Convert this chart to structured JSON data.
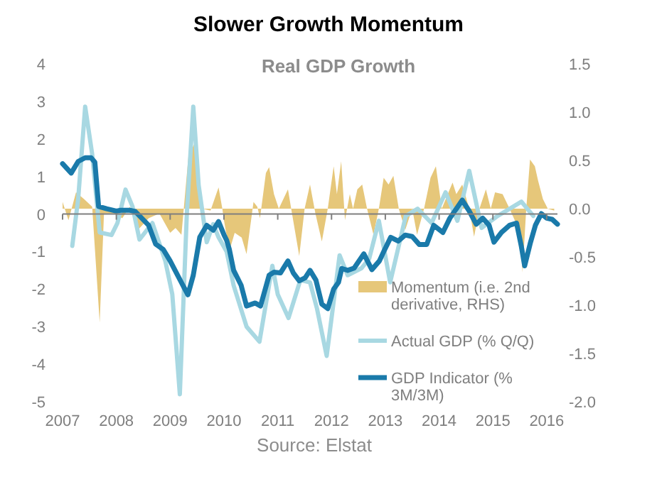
{
  "chart_data": {
    "type": "line",
    "title": "Slower Growth Momentum",
    "subtitle": "Real GDP Growth",
    "annotations": [
      "Source: Elstat"
    ],
    "xlim": [
      2007,
      2016.2
    ],
    "xticks": [
      2007,
      2008,
      2009,
      2010,
      2011,
      2012,
      2013,
      2014,
      2015,
      2016
    ],
    "ylim": [
      -5,
      4
    ],
    "yticks": [
      -5,
      -4,
      -3,
      -2,
      -1,
      0,
      1,
      2,
      3,
      4
    ],
    "y2lim": [
      -2,
      1.5
    ],
    "y2ticks": [
      {
        "value": -2,
        "label": "-2.0"
      },
      {
        "value": -1.5,
        "label": "-1.5"
      },
      {
        "value": -1,
        "label": "-1.0"
      },
      {
        "value": -0.5,
        "label": "-0.5"
      },
      {
        "value": 0,
        "label": "0.0"
      },
      {
        "value": 0.5,
        "label": "0.5"
      },
      {
        "value": 1,
        "label": "1.0"
      },
      {
        "value": 1.5,
        "label": "1.5"
      }
    ],
    "legend": "bottom right",
    "series": [
      {
        "name": "Momentum (i.e. 2nd derivative, RHS)",
        "type": "area",
        "axis": "y2",
        "color": "#e6c77a",
        "x": [
          2007,
          2007.11,
          2007.25,
          2007.4,
          2007.55,
          2007.69,
          2007.77,
          2007.95,
          2008.11,
          2008.25,
          2008.4,
          2008.6,
          2008.8,
          2009,
          2009.1,
          2009.21,
          2009.34,
          2009.48,
          2009.6,
          2009.75,
          2009.9,
          2009.97,
          2010,
          2010.1,
          2010.2,
          2010.33,
          2010.42,
          2010.55,
          2010.62,
          2010.67,
          2010.78,
          2010.84,
          2010.93,
          2011.02,
          2011.19,
          2011.25,
          2011.4,
          2011.5,
          2011.6,
          2011.7,
          2011.82,
          2011.93,
          2012.04,
          2012.1,
          2012.18,
          2012.25,
          2012.34,
          2012.4,
          2012.48,
          2012.57,
          2012.66,
          2012.78,
          2012.88,
          2012.97,
          2013.06,
          2013.15,
          2013.25,
          2013.37,
          2013.5,
          2013.59,
          2013.72,
          2013.84,
          2013.94,
          2014.05,
          2014.16,
          2014.25,
          2014.32,
          2014.43,
          2014.56,
          2014.65,
          2014.75,
          2014.87,
          2014.96,
          2015.04,
          2015.18,
          2015.31,
          2015.51,
          2015.55,
          2015.62,
          2015.69,
          2015.78,
          2015.84,
          2015.93,
          2016.02,
          2016.14
        ],
        "values": [
          0.07,
          -0.12,
          0.17,
          0.1,
          0.02,
          -1.18,
          -0.05,
          -0.05,
          -0.1,
          0.02,
          -0.22,
          -0.1,
          -0.05,
          -0.25,
          -0.2,
          -0.27,
          0.54,
          0.71,
          0,
          -0.02,
          0.22,
          0,
          -0.12,
          -0.44,
          -0.25,
          -0.3,
          -0.47,
          0.07,
          0.02,
          -0.1,
          0.37,
          0.43,
          0.15,
          0,
          0.2,
          0,
          -0.49,
          0,
          0.25,
          -0.05,
          -0.34,
          0,
          0.44,
          0.15,
          0.49,
          -0.12,
          0.15,
          0,
          0.2,
          0.25,
          0,
          -0.27,
          0,
          0.32,
          0.25,
          0.34,
          0,
          -0.22,
          0,
          -0.27,
          0,
          0.32,
          0.44,
          0,
          0.15,
          0.27,
          0.15,
          0.25,
          0,
          -0.29,
          0,
          0.2,
          0,
          0.17,
          0.15,
          0,
          -0.25,
          -0.66,
          0,
          0.51,
          0.44,
          0.29,
          0.1,
          0,
          -0.02
        ]
      },
      {
        "name": "Actual GDP (% Q/Q)",
        "color": "#a8d8e2",
        "x": [
          2007.18,
          2007.29,
          2007.42,
          2007.55,
          2007.69,
          2007.91,
          2008.02,
          2008.17,
          2008.3,
          2008.43,
          2008.67,
          2008.91,
          2009.04,
          2009.18,
          2009.31,
          2009.43,
          2009.53,
          2009.68,
          2009.8,
          2009.9,
          2010.05,
          2010.18,
          2010.42,
          2010.66,
          2010.9,
          2011,
          2011.2,
          2011.42,
          2011.6,
          2011.73,
          2011.91,
          2012.15,
          2012.3,
          2012.56,
          2012.7,
          2012.88,
          2013.09,
          2013.38,
          2013.6,
          2013.86,
          2014.12,
          2014.34,
          2014.56,
          2014.79,
          2015.09,
          2015.53,
          2015.75
        ],
        "values": [
          -0.85,
          0.4,
          2.86,
          1.6,
          -0.49,
          -0.56,
          -0.24,
          0.65,
          0.2,
          -0.68,
          -0.24,
          -1.25,
          -2.14,
          -4.8,
          0.01,
          2.86,
          0.77,
          -0.75,
          -0.27,
          -0.62,
          -1.0,
          -1.9,
          -3.0,
          -3.4,
          -1.38,
          -2.14,
          -2.77,
          -1.76,
          -1.82,
          -2.52,
          -3.78,
          -1.1,
          -1.63,
          -1.44,
          -1.19,
          -0.18,
          -1.82,
          -0.05,
          0.14,
          -0.24,
          0.58,
          -0.18,
          1.15,
          -0.37,
          -0.05,
          0.33,
          -0.05
        ]
      },
      {
        "name": "GDP Indicator (% 3M/3M)",
        "color": "#1a7aaa",
        "x": [
          2007,
          2007.16,
          2007.29,
          2007.42,
          2007.53,
          2007.6,
          2007.67,
          2007.82,
          2008,
          2008.08,
          2008.25,
          2008.35,
          2008.6,
          2008.73,
          2008.87,
          2009,
          2009.2,
          2009.33,
          2009.43,
          2009.55,
          2009.68,
          2009.8,
          2009.9,
          2010,
          2010.05,
          2010.1,
          2010.18,
          2010.32,
          2010.42,
          2010.58,
          2010.68,
          2010.84,
          2010.93,
          2011.05,
          2011.19,
          2011.29,
          2011.4,
          2011.51,
          2011.6,
          2011.71,
          2011.82,
          2011.93,
          2012.04,
          2012.13,
          2012.19,
          2012.3,
          2012.42,
          2012.6,
          2012.75,
          2012.89,
          2012.97,
          2013.1,
          2013.24,
          2013.37,
          2013.5,
          2013.63,
          2013.77,
          2013.9,
          2014.07,
          2014.2,
          2014.32,
          2014.43,
          2014.56,
          2014.69,
          2014.81,
          2014.93,
          2015.02,
          2015.16,
          2015.31,
          2015.44,
          2015.53,
          2015.59,
          2015.7,
          2015.79,
          2015.9,
          2016,
          2016.1,
          2016.2
        ],
        "values": [
          1.34,
          1.09,
          1.4,
          1.5,
          1.5,
          1.38,
          0.2,
          0.14,
          0.08,
          0.1,
          0.1,
          0.07,
          -0.3,
          -0.8,
          -0.94,
          -1.25,
          -1.8,
          -2.15,
          -1.63,
          -0.62,
          -0.3,
          -0.43,
          -0.2,
          -0.55,
          -0.7,
          -0.94,
          -1.5,
          -1.9,
          -2.45,
          -2.37,
          -2.45,
          -1.63,
          -1.55,
          -1.57,
          -1.25,
          -1.57,
          -1.78,
          -1.7,
          -1.5,
          -1.76,
          -2.4,
          -2.52,
          -2.0,
          -1.82,
          -1.45,
          -1.5,
          -1.44,
          -1.06,
          -1.48,
          -1.25,
          -1.0,
          -0.62,
          -0.72,
          -0.56,
          -0.6,
          -0.81,
          -0.81,
          -0.3,
          -0.49,
          -0.11,
          0.14,
          0.37,
          0.08,
          -0.27,
          -0.11,
          -0.3,
          -0.75,
          -0.49,
          -0.3,
          -0.24,
          -0.87,
          -1.38,
          -0.75,
          -0.3,
          0.01,
          -0.11,
          -0.14,
          -0.27
        ]
      }
    ]
  }
}
